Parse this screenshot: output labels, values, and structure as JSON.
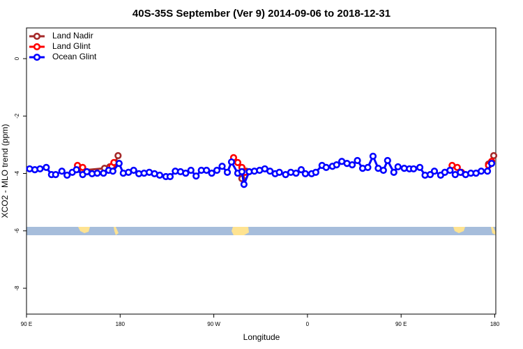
{
  "chart_data": {
    "type": "line",
    "title": "40S-35S September (Ver 9)   2014-09-06 to 2018-12-31",
    "x_label": "Longitude",
    "y_label": "XCO2 - MLO trend (ppm)",
    "xlim": [
      90,
      541
    ],
    "ylim": [
      -8.9,
      1.07
    ],
    "xticks": [
      {
        "value": 90,
        "label": "90 E"
      },
      180,
      {
        "value": 270,
        "label": "90 W"
      },
      {
        "value": 360,
        "label": "0"
      },
      {
        "value": 450,
        "label": "90 E"
      },
      {
        "value": 540,
        "label": "180"
      }
    ],
    "yticks": [
      0,
      -2,
      -4,
      -6,
      -8
    ],
    "legend": "upper left",
    "series": [
      {
        "name": "Land Nadir",
        "color": "#a52a2a",
        "x": [
          144,
          165,
          170,
          175,
          178,
          260,
          297,
          301,
          420,
          534,
          539
        ],
        "values": [
          -3.89,
          -3.82,
          -3.77,
          -3.65,
          -3.38,
          null,
          -4.18,
          -3.92,
          null,
          -3.67,
          -3.38
        ]
      },
      {
        "name": "Land Glint",
        "color": "#ff0000",
        "x": [
          139,
          144,
          148,
          160,
          172,
          174,
          230,
          289,
          293,
          297,
          300,
          400,
          499,
          504,
          508,
          520,
          534,
          537
        ],
        "values": [
          -3.72,
          -3.79,
          -3.94,
          null,
          -3.75,
          -3.62,
          null,
          -3.45,
          -3.62,
          -3.79,
          -3.96,
          null,
          -3.72,
          -3.79,
          -3.96,
          null,
          -3.72,
          -3.58
        ]
      },
      {
        "name": "Ocean Glint",
        "color": "#0000ff",
        "x": [
          93,
          98,
          103,
          109,
          114,
          118,
          124,
          129,
          134,
          138,
          144,
          148,
          153,
          158,
          164,
          169,
          173,
          179,
          183,
          188,
          193,
          198,
          203,
          208,
          213,
          218,
          224,
          228,
          233,
          238,
          243,
          248,
          253,
          258,
          263,
          268,
          273,
          278,
          283,
          287,
          293,
          297,
          299,
          304,
          309,
          314,
          319,
          324,
          329,
          333,
          339,
          344,
          349,
          354,
          358,
          364,
          368,
          374,
          378,
          384,
          388,
          393,
          398,
          403,
          408,
          413,
          418,
          423,
          428,
          433,
          437,
          443,
          447,
          453,
          458,
          462,
          468,
          473,
          478,
          482,
          488,
          492,
          497,
          502,
          507,
          512,
          517,
          522,
          527,
          533,
          537
        ],
        "values": [
          -3.84,
          -3.87,
          -3.84,
          -3.79,
          -4.04,
          -4.04,
          -3.92,
          -4.06,
          -3.96,
          -3.87,
          -4.04,
          -3.94,
          -4.01,
          -3.99,
          -3.99,
          -3.89,
          -3.92,
          -3.65,
          -3.99,
          -3.96,
          -3.89,
          -4.01,
          -3.99,
          -3.96,
          -4.01,
          -4.06,
          -4.11,
          -4.11,
          -3.92,
          -3.94,
          -3.99,
          -3.89,
          -4.09,
          -3.89,
          -3.89,
          -3.99,
          -3.89,
          -3.75,
          -3.96,
          -3.6,
          -3.99,
          -3.94,
          -4.38,
          -3.94,
          -3.92,
          -3.89,
          -3.84,
          -3.92,
          -4.01,
          -3.96,
          -4.04,
          -3.96,
          -3.99,
          -3.87,
          -4.01,
          -4.01,
          -3.96,
          -3.72,
          -3.79,
          -3.75,
          -3.7,
          -3.58,
          -3.65,
          -3.7,
          -3.55,
          -3.82,
          -3.79,
          -3.4,
          -3.82,
          -3.89,
          -3.55,
          -3.96,
          -3.77,
          -3.82,
          -3.84,
          -3.84,
          -3.79,
          -4.06,
          -4.04,
          -3.92,
          -4.06,
          -3.96,
          -3.89,
          -4.04,
          -3.96,
          -4.04,
          -3.99,
          -3.99,
          -3.92,
          -3.92,
          -3.65
        ]
      }
    ]
  }
}
